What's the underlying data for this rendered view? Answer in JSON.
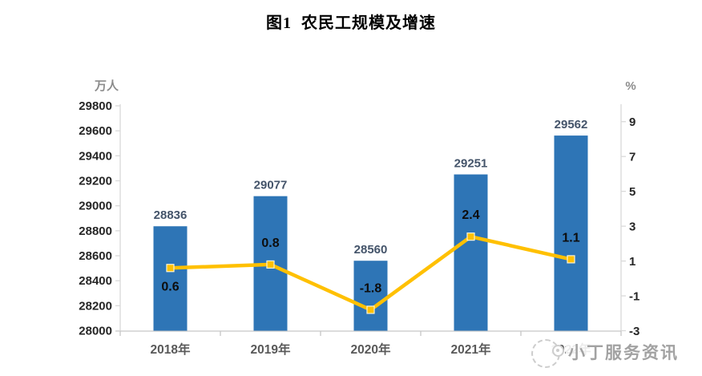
{
  "title": "图1  农民工规模及增速",
  "chart_data": {
    "type": "combo",
    "title": "图1  农民工规模及增速",
    "categories": [
      "2018年",
      "2019年",
      "2020年",
      "2021年",
      "2022年"
    ],
    "series": [
      {
        "name": "农民工规模",
        "type": "bar",
        "axis": "left",
        "values": [
          28836,
          29077,
          28560,
          29251,
          29562
        ]
      },
      {
        "name": "增速",
        "type": "line",
        "axis": "right",
        "values": [
          0.6,
          0.8,
          -1.8,
          2.4,
          1.1
        ]
      }
    ],
    "left_axis": {
      "unit": "万人",
      "min": 28000,
      "max": 29800,
      "tick_step": 200,
      "ticks": [
        29800,
        29600,
        29400,
        29200,
        29000,
        28800,
        28600,
        28400,
        28200,
        28000
      ]
    },
    "right_axis": {
      "unit": "%",
      "min": -3,
      "max": 10,
      "tick_step": 2,
      "ticks": [
        9,
        7,
        5,
        3,
        1,
        -1,
        -3
      ]
    },
    "grid": false,
    "legend": "none"
  },
  "colors": {
    "bar": "#2E75B6",
    "line": "#FFC000",
    "marker_stroke": "#FDF3D5",
    "bar_label": "#44546A",
    "line_label": "#0d0d0d",
    "axis_text": "#262626",
    "category_text": "#595959",
    "unit_text": "#8c8c8c",
    "axis_line": "#D9D9D9",
    "bottom_axis_line": "#C6C6C6"
  },
  "watermark": {
    "text": "小丁服务资讯",
    "logo": "mascot-circle-icon"
  }
}
